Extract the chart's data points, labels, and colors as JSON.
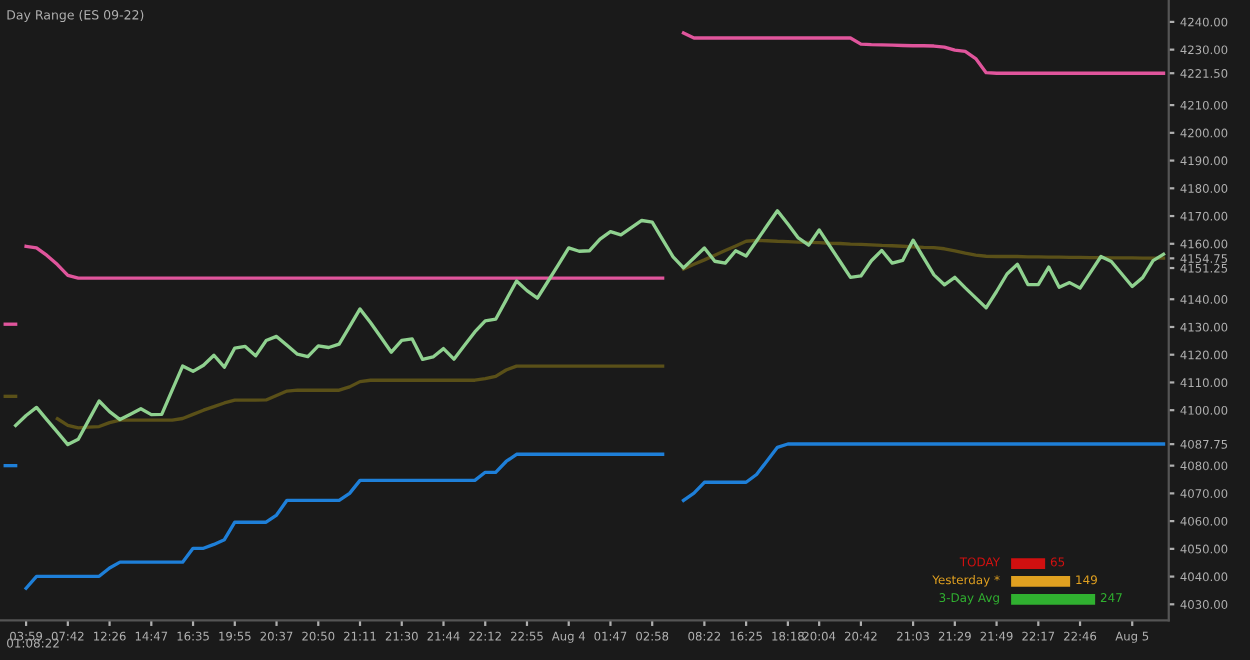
{
  "chart_data": {
    "type": "line",
    "title": "Day Range (ES 09-22)",
    "categories": [
      null,
      null,
      "03:59",
      null,
      null,
      null,
      "07:42",
      null,
      null,
      null,
      "12:26",
      null,
      null,
      null,
      "14:47",
      null,
      null,
      null,
      "16:35",
      null,
      null,
      null,
      "19:55",
      null,
      null,
      null,
      "20:37",
      null,
      null,
      null,
      "20:50",
      null,
      null,
      null,
      "21:11",
      null,
      null,
      null,
      "21:30",
      null,
      null,
      null,
      "21:44",
      null,
      null,
      null,
      "22:12",
      null,
      null,
      null,
      "22:55",
      null,
      null,
      null,
      "Aug 4",
      null,
      null,
      null,
      "01:47",
      null,
      null,
      null,
      "02:58",
      null,
      null,
      null,
      null,
      "08:22",
      null,
      null,
      null,
      "16:25",
      null,
      null,
      null,
      "18:18",
      null,
      null,
      "20:04",
      null,
      null,
      null,
      "20:42",
      null,
      null,
      null,
      null,
      "21:03",
      null,
      null,
      null,
      "21:29",
      null,
      null,
      null,
      "21:49",
      null,
      null,
      null,
      "22:17",
      null,
      null,
      null,
      "22:46",
      null,
      null,
      null,
      null,
      "Aug 5",
      null,
      null,
      null
    ],
    "ylim": [
      4024.2,
      4247.9
    ],
    "yticks": [
      {
        "value": 4030,
        "label": "4030.00"
      },
      {
        "value": 4040,
        "label": "4040.00"
      },
      {
        "value": 4050,
        "label": "4050.00"
      },
      {
        "value": 4060,
        "label": "4060.00"
      },
      {
        "value": 4070,
        "label": "4070.00"
      },
      {
        "value": 4080,
        "label": "4080.00"
      },
      {
        "value": 4087.75,
        "label": "4087.75"
      },
      {
        "value": 4100,
        "label": "4100.00"
      },
      {
        "value": 4110,
        "label": "4110.00"
      },
      {
        "value": 4120,
        "label": "4120.00"
      },
      {
        "value": 4130,
        "label": "4130.00"
      },
      {
        "value": 4140,
        "label": "4140.00"
      },
      {
        "value": 4151.25,
        "label": "4151.25"
      },
      {
        "value": 4154.75,
        "label": "4154.75"
      },
      {
        "value": 4160,
        "label": "4160.00"
      },
      {
        "value": 4170,
        "label": "4170.00"
      },
      {
        "value": 4180,
        "label": "4180.00"
      },
      {
        "value": 4190,
        "label": "4190.00"
      },
      {
        "value": 4200,
        "label": "4200.00"
      },
      {
        "value": 4210,
        "label": "4210.00"
      },
      {
        "value": 4221.5,
        "label": "4221.50"
      },
      {
        "value": 4230,
        "label": "4230.00"
      },
      {
        "value": 4240,
        "label": "4240.00"
      }
    ],
    "grid": false,
    "line_style": "solid",
    "marker": "none",
    "series": [
      {
        "color": "#e0559c",
        "values": [
          null,
          null,
          4159.1,
          4158.5,
          4155.8,
          4152.5,
          4148.6,
          4147.6,
          4147.6,
          4147.6,
          4147.6,
          4147.6,
          4147.6,
          4147.6,
          4147.6,
          4147.6,
          4147.6,
          4147.6,
          4147.6,
          4147.6,
          4147.6,
          4147.6,
          4147.6,
          4147.6,
          4147.6,
          4147.6,
          4147.6,
          4147.6,
          4147.6,
          4147.6,
          4147.6,
          4147.6,
          4147.6,
          4147.6,
          4147.6,
          4147.6,
          4147.6,
          4147.6,
          4147.6,
          4147.6,
          4147.6,
          4147.6,
          4147.6,
          4147.6,
          4147.6,
          4147.6,
          4147.6,
          4147.6,
          4147.6,
          4147.6,
          4147.6,
          4147.6,
          4147.6,
          4147.6,
          4147.6,
          4147.6,
          4147.6,
          4147.6,
          4147.6,
          4147.6,
          4147.6,
          4147.6,
          4147.6,
          4147.6,
          null,
          4236.0,
          4234.2,
          4234.2,
          4234.2,
          4234.2,
          4234.2,
          4234.2,
          4234.2,
          4234.2,
          4234.2,
          4234.2,
          4234.2,
          4234.2,
          4234.2,
          4234.2,
          4234.2,
          4234.2,
          4232.0,
          4231.8,
          4231.7,
          4231.6,
          4231.5,
          4231.4,
          4231.4,
          4231.3,
          4230.9,
          4229.8,
          4229.4,
          4226.8,
          4221.7,
          4221.5,
          4221.5,
          4221.5,
          4221.5,
          4221.5,
          4221.5,
          4221.5,
          4221.5,
          4221.5,
          4221.5,
          4221.5,
          4221.5,
          4221.5,
          4221.5,
          4221.5,
          4221.5,
          4221.5
        ]
      },
      {
        "color": "#e0559c",
        "values": [
          4131,
          4131,
          null,
          null,
          null,
          null,
          null,
          null,
          null,
          null,
          null,
          null,
          null,
          null,
          null,
          null,
          null,
          null,
          null,
          null,
          null,
          null,
          null,
          null,
          null,
          null,
          null,
          null,
          null,
          null,
          null,
          null,
          null,
          null,
          null,
          null,
          null,
          null,
          null,
          null,
          null,
          null,
          null,
          null,
          null,
          null,
          null,
          null,
          null,
          null,
          null,
          null,
          null,
          null,
          null,
          null,
          null,
          null,
          null,
          null,
          null,
          null,
          null,
          null,
          null,
          null,
          null,
          null,
          null,
          null,
          null,
          null,
          null,
          null,
          null,
          null,
          null,
          null,
          null,
          null,
          null,
          null,
          null,
          null,
          null,
          null,
          null,
          null,
          null,
          null,
          null,
          null,
          null,
          null,
          null,
          null,
          null,
          null,
          null,
          null,
          null,
          null,
          null,
          null,
          null,
          null,
          null,
          null,
          null,
          null,
          null,
          null
        ]
      },
      {
        "color": "#1e7fd8",
        "values": [
          null,
          null,
          4035.8,
          4040.1,
          4040.1,
          4040.1,
          4040.1,
          4040.1,
          4040.1,
          4040.1,
          4043.1,
          4045.2,
          4045.2,
          4045.2,
          4045.2,
          4045.2,
          4045.2,
          4045.2,
          4050.2,
          4050.2,
          4051.6,
          4053.3,
          4059.6,
          4059.6,
          4059.6,
          4059.6,
          4062.2,
          4067.5,
          4067.5,
          4067.5,
          4067.5,
          4067.5,
          4067.5,
          4070.0,
          4074.7,
          4074.7,
          4074.7,
          4074.7,
          4074.7,
          4074.7,
          4074.7,
          4074.7,
          4074.7,
          4074.7,
          4074.7,
          4074.7,
          4077.6,
          4077.6,
          4081.5,
          4084.1,
          4084.1,
          4084.1,
          4084.1,
          4084.1,
          4084.1,
          4084.1,
          4084.1,
          4084.1,
          4084.1,
          4084.1,
          4084.1,
          4084.1,
          4084.1,
          4084.1,
          null,
          4067.5,
          4070.1,
          4074.0,
          4074.0,
          4074.0,
          4074.0,
          4074.0,
          4076.8,
          4081.7,
          4086.6,
          4087.8,
          4087.8,
          4087.8,
          4087.8,
          4087.8,
          4087.8,
          4087.8,
          4087.8,
          4087.8,
          4087.8,
          4087.8,
          4087.8,
          4087.8,
          4087.8,
          4087.8,
          4087.8,
          4087.8,
          4087.8,
          4087.8,
          4087.8,
          4087.8,
          4087.8,
          4087.8,
          4087.8,
          4087.8,
          4087.8,
          4087.8,
          4087.8,
          4087.8,
          4087.8,
          4087.8,
          4087.8,
          4087.8,
          4087.8,
          4087.8,
          4087.8,
          4087.8
        ]
      },
      {
        "color": "#1e7fd8",
        "values": [
          4080,
          4080,
          null,
          null,
          null,
          null,
          null,
          null,
          null,
          null,
          null,
          null,
          null,
          null,
          null,
          null,
          null,
          null,
          null,
          null,
          null,
          null,
          null,
          null,
          null,
          null,
          null,
          null,
          null,
          null,
          null,
          null,
          null,
          null,
          null,
          null,
          null,
          null,
          null,
          null,
          null,
          null,
          null,
          null,
          null,
          null,
          null,
          null,
          null,
          null,
          null,
          null,
          null,
          null,
          null,
          null,
          null,
          null,
          null,
          null,
          null,
          null,
          null,
          null,
          null,
          null,
          null,
          null,
          null,
          null,
          null,
          null,
          null,
          null,
          null,
          null,
          null,
          null,
          null,
          null,
          null,
          null,
          null,
          null,
          null,
          null,
          null,
          null,
          null,
          null,
          null,
          null,
          null,
          null,
          null,
          null,
          null,
          null,
          null,
          null,
          null,
          null,
          null,
          null,
          null,
          null,
          null,
          null,
          null,
          null,
          null,
          null
        ]
      },
      {
        "color": "#5a5018",
        "values": [
          null,
          null,
          null,
          null,
          null,
          4096.9,
          4094.5,
          4093.6,
          4093.9,
          4094.1,
          4095.5,
          4096.4,
          4096.4,
          4096.4,
          4096.4,
          4096.4,
          4096.4,
          4097.0,
          4098.5,
          4100.0,
          4101.3,
          4102.6,
          4103.6,
          4103.6,
          4103.6,
          4103.7,
          4105.3,
          4106.9,
          4107.2,
          4107.2,
          4107.2,
          4107.2,
          4107.2,
          4108.4,
          4110.3,
          4110.8,
          4110.8,
          4110.8,
          4110.8,
          4110.8,
          4110.8,
          4110.8,
          4110.8,
          4110.8,
          4110.8,
          4110.8,
          4111.4,
          4112.2,
          4114.5,
          4115.9,
          4115.9,
          4115.9,
          4115.9,
          4115.9,
          4115.9,
          4115.9,
          4115.9,
          4115.9,
          4115.9,
          4115.9,
          4115.9,
          4115.9,
          4115.9,
          4115.9,
          null,
          4150.9,
          4152.6,
          4154.2,
          4155.9,
          4157.6,
          4159.2,
          4160.9,
          4161.2,
          4161.1,
          4160.9,
          4160.8,
          4160.6,
          4160.5,
          4160.4,
          4160.2,
          4160.1,
          4159.9,
          4159.8,
          4159.6,
          4159.4,
          4159.3,
          4159.1,
          4158.9,
          4158.7,
          4158.6,
          4158.2,
          4157.4,
          4156.6,
          4155.9,
          4155.5,
          4155.4,
          4155.4,
          4155.4,
          4155.3,
          4155.3,
          4155.2,
          4155.2,
          4155.1,
          4155.1,
          4155.0,
          4155.0,
          4154.9,
          4154.9,
          4154.9,
          4154.8,
          4154.8,
          4154.8
        ]
      },
      {
        "color": "#5a5018",
        "values": [
          4105,
          4105,
          null,
          null,
          null,
          null,
          null,
          null,
          null,
          null,
          null,
          null,
          null,
          null,
          null,
          null,
          null,
          null,
          null,
          null,
          null,
          null,
          null,
          null,
          null,
          null,
          null,
          null,
          null,
          null,
          null,
          null,
          null,
          null,
          null,
          null,
          null,
          null,
          null,
          null,
          null,
          null,
          null,
          null,
          null,
          null,
          null,
          null,
          null,
          null,
          null,
          null,
          null,
          null,
          null,
          null,
          null,
          null,
          null,
          null,
          null,
          null,
          null,
          null,
          null,
          null,
          null,
          null,
          null,
          null,
          null,
          null,
          null,
          null,
          null,
          null,
          null,
          null,
          null,
          null,
          null,
          null,
          null,
          null,
          null,
          null,
          null,
          null,
          null,
          null,
          null,
          null,
          null,
          null,
          null,
          null,
          null,
          null,
          null,
          null,
          null,
          null,
          null,
          null,
          null,
          null,
          null,
          null,
          null,
          null,
          null,
          null
        ]
      },
      {
        "color": "#8fd18f",
        "values": [
          null,
          4094.5,
          4098.1,
          4101.0,
          4096.5,
          4092.1,
          4087.6,
          4089.5,
          4096.4,
          4103.3,
          4099.5,
          4096.6,
          4098.5,
          4100.5,
          4098.4,
          4098.5,
          4107.2,
          4115.9,
          4114.0,
          4116.2,
          4119.8,
          4115.5,
          4122.4,
          4123.0,
          4119.6,
          4125.1,
          4126.6,
          4123.4,
          4120.2,
          4119.3,
          4123.2,
          4122.6,
          4123.8,
          4130.1,
          4136.5,
          4131.6,
          4126.3,
          4120.9,
          4125.2,
          4125.7,
          4118.3,
          4119.2,
          4122.2,
          4118.4,
          4123.3,
          4128.2,
          4132.2,
          4132.8,
          4139.7,
          4146.6,
          4143.1,
          4140.4,
          4146.4,
          4152.4,
          4158.5,
          4157.3,
          4157.5,
          4161.7,
          4164.4,
          4163.2,
          4165.8,
          4168.4,
          4167.8,
          4161.5,
          4155.3,
          4151.3,
          4154.9,
          4158.5,
          4153.7,
          4153.0,
          4157.5,
          4155.6,
          4161.0,
          4166.5,
          4171.9,
          4167.1,
          4162.1,
          4159.5,
          4165.0,
          4159.3,
          4153.6,
          4147.9,
          4148.4,
          4153.9,
          4157.6,
          4153.0,
          4154.0,
          4161.3,
          4155.0,
          4148.8,
          4145.2,
          4147.9,
          4144.1,
          4140.5,
          4136.9,
          4142.8,
          4149.1,
          4152.6,
          4145.3,
          4145.3,
          4151.6,
          4144.3,
          4146.0,
          4144.0,
          4149.7,
          4155.4,
          4153.6,
          4149.1,
          4144.6,
          4147.8,
          4153.9,
          4156.2
        ]
      }
    ],
    "annotations": [
      "01:08:22",
      "TODAY",
      "65",
      "Yesterday *",
      "149",
      "3-Day Avg",
      "247"
    ]
  }
}
